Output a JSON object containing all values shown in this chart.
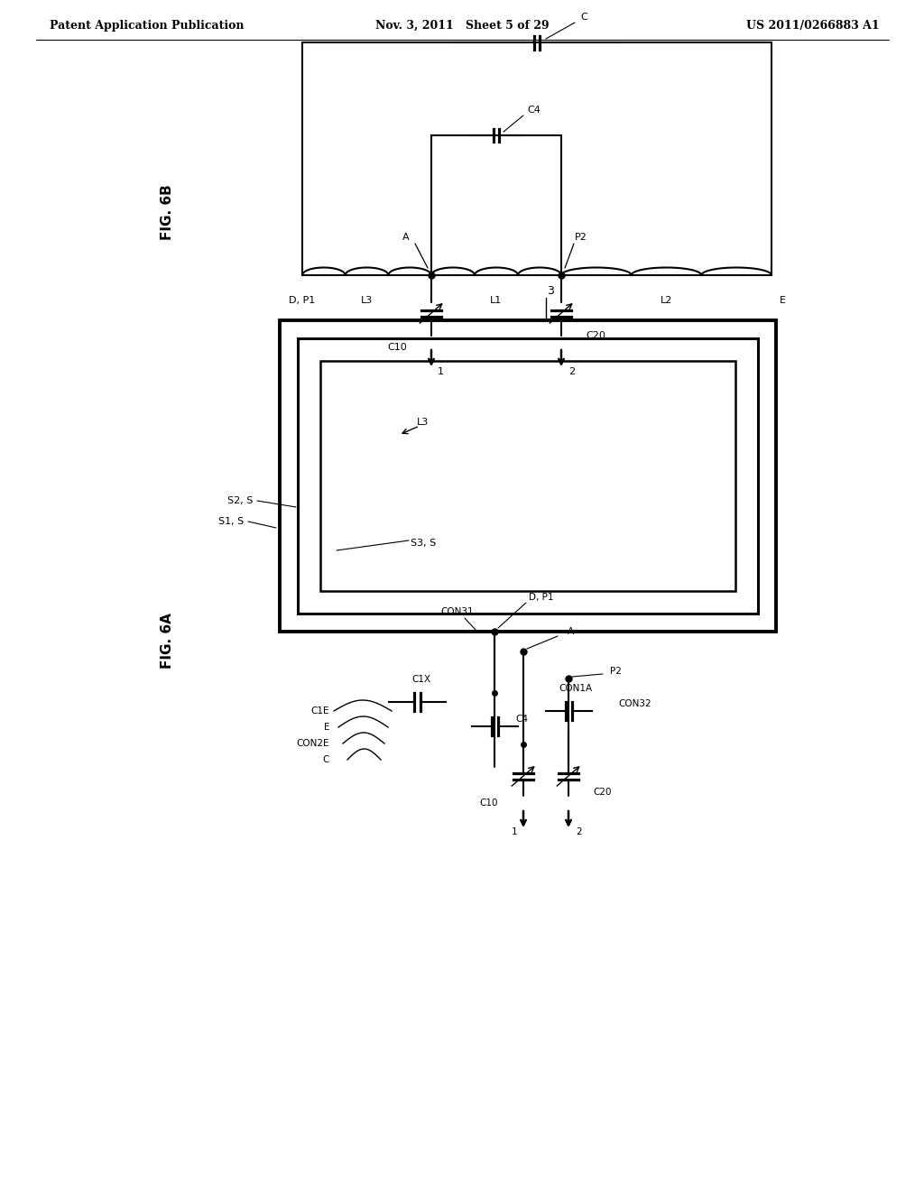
{
  "bg_color": "#ffffff",
  "line_color": "#000000",
  "header_left": "Patent Application Publication",
  "header_mid": "Nov. 3, 2011   Sheet 5 of 29",
  "header_right": "US 2011/0266883 A1",
  "fig6b_label": "FIG. 6B",
  "fig6a_label": "FIG. 6A",
  "fig_width": 10.24,
  "fig_height": 13.2
}
